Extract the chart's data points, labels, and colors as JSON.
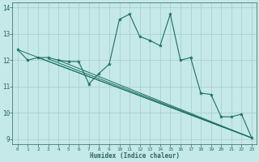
{
  "xlabel": "Humidex (Indice chaleur)",
  "background_color": "#c5e8e8",
  "grid_color": "#a5cccc",
  "line_color": "#1a7060",
  "xlim": [
    -0.5,
    23.5
  ],
  "ylim": [
    8.8,
    14.2
  ],
  "yticks": [
    9,
    10,
    11,
    12,
    13,
    14
  ],
  "xticks": [
    0,
    1,
    2,
    3,
    4,
    5,
    6,
    7,
    8,
    9,
    10,
    11,
    12,
    13,
    14,
    15,
    16,
    17,
    18,
    19,
    20,
    21,
    22,
    23
  ],
  "main_x": [
    0,
    1,
    2,
    3,
    4,
    5,
    6,
    7,
    8,
    9,
    10,
    11,
    12,
    13,
    14,
    15,
    16,
    17,
    18,
    19,
    20,
    21,
    22,
    23
  ],
  "main_y": [
    12.4,
    12.0,
    12.1,
    12.1,
    12.0,
    11.95,
    11.95,
    11.1,
    11.5,
    11.85,
    13.55,
    13.75,
    12.9,
    12.75,
    12.55,
    13.75,
    12.0,
    12.1,
    10.75,
    10.7,
    9.85,
    9.85,
    9.95,
    9.05
  ],
  "trend_lines": [
    {
      "x": [
        0,
        23
      ],
      "y": [
        12.4,
        9.05
      ]
    },
    {
      "x": [
        2,
        23
      ],
      "y": [
        12.1,
        9.05
      ]
    },
    {
      "x": [
        3,
        23
      ],
      "y": [
        12.05,
        9.05
      ]
    },
    {
      "x": [
        4,
        23
      ],
      "y": [
        12.0,
        9.05
      ]
    }
  ],
  "tick_color": "#2a6660",
  "xlabel_fontsize": 5.5,
  "xtick_fontsize": 4.3,
  "ytick_fontsize": 5.5
}
